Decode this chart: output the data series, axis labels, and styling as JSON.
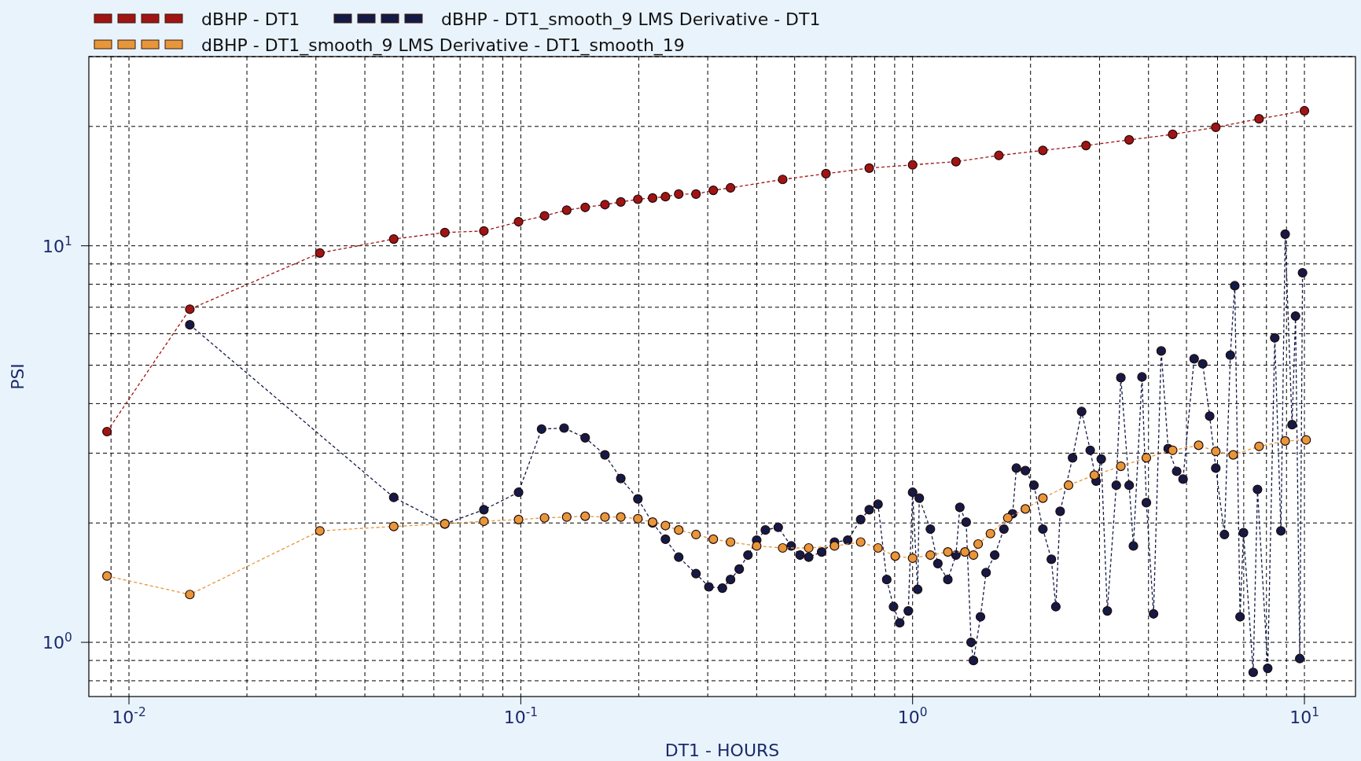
{
  "chart_data": {
    "type": "line",
    "xlabel": "DT1 - HOURS",
    "ylabel": "PSI",
    "log": "xy",
    "grid": true,
    "legend": "top",
    "marker": "circle",
    "line_style": "dashed",
    "xlim": [
      0.0079,
      13.5
    ],
    "ylim": [
      0.73,
      30
    ],
    "xticks": [
      {
        "value": 0.009,
        "label": null
      },
      {
        "value": 0.01,
        "label": "10$^{-2}$"
      },
      {
        "value": 0.02,
        "label": null
      },
      {
        "value": 0.03,
        "label": null
      },
      {
        "value": 0.04,
        "label": null
      },
      {
        "value": 0.05,
        "label": null
      },
      {
        "value": 0.06,
        "label": null
      },
      {
        "value": 0.07,
        "label": null
      },
      {
        "value": 0.08,
        "label": null
      },
      {
        "value": 0.09,
        "label": null
      },
      {
        "value": 0.1,
        "label": "10$^{-1}$"
      },
      {
        "value": 0.2,
        "label": null
      },
      {
        "value": 0.3,
        "label": null
      },
      {
        "value": 0.4,
        "label": null
      },
      {
        "value": 0.5,
        "label": null
      },
      {
        "value": 0.6,
        "label": null
      },
      {
        "value": 0.7,
        "label": null
      },
      {
        "value": 0.8,
        "label": null
      },
      {
        "value": 0.9,
        "label": null
      },
      {
        "value": 1,
        "label": "10$^{0}$"
      },
      {
        "value": 2,
        "label": null
      },
      {
        "value": 3,
        "label": null
      },
      {
        "value": 4,
        "label": null
      },
      {
        "value": 5,
        "label": null
      },
      {
        "value": 6,
        "label": null
      },
      {
        "value": 7,
        "label": null
      },
      {
        "value": 8,
        "label": null
      },
      {
        "value": 9,
        "label": null
      },
      {
        "value": 10,
        "label": "10$^{1}$"
      }
    ],
    "yticks": [
      {
        "value": 0.8,
        "label": null
      },
      {
        "value": 0.9,
        "label": null
      },
      {
        "value": 1,
        "label": "10$^{0}$"
      },
      {
        "value": 2,
        "label": null
      },
      {
        "value": 3,
        "label": null
      },
      {
        "value": 4,
        "label": null
      },
      {
        "value": 5,
        "label": null
      },
      {
        "value": 6,
        "label": null
      },
      {
        "value": 7,
        "label": null
      },
      {
        "value": 8,
        "label": null
      },
      {
        "value": 9,
        "label": null
      },
      {
        "value": 10,
        "label": "10$^{1}$"
      },
      {
        "value": 20,
        "label": null
      },
      {
        "value": 30,
        "label": null
      }
    ],
    "series": [
      {
        "name": "dBHP - DT1",
        "color": "#a01414",
        "x": [
          0.00879,
          0.0143,
          0.0307,
          0.0474,
          0.064,
          0.0805,
          0.0987,
          0.115,
          0.131,
          0.146,
          0.164,
          0.18,
          0.199,
          0.217,
          0.234,
          0.253,
          0.28,
          0.31,
          0.343,
          0.466,
          0.601,
          0.775,
          1.0,
          1.29,
          1.66,
          2.15,
          2.77,
          3.57,
          4.61,
          5.94,
          7.66,
          10.0
        ],
        "values": [
          3.4,
          6.92,
          9.59,
          10.4,
          10.8,
          10.9,
          11.5,
          11.9,
          12.3,
          12.5,
          12.7,
          12.9,
          13.1,
          13.2,
          13.3,
          13.5,
          13.5,
          13.8,
          14.0,
          14.7,
          15.2,
          15.7,
          16.0,
          16.3,
          16.9,
          17.4,
          17.9,
          18.5,
          19.1,
          19.9,
          20.9,
          21.9
        ]
      },
      {
        "name": "dBHP - DT1_smooth_9 LMS Derivative - DT1",
        "color": "#141a45",
        "x": [
          0.0143,
          0.0474,
          0.064,
          0.0805,
          0.0987,
          0.113,
          0.129,
          0.146,
          0.164,
          0.18,
          0.199,
          0.217,
          0.234,
          0.253,
          0.28,
          0.302,
          0.327,
          0.343,
          0.361,
          0.38,
          0.4,
          0.421,
          0.454,
          0.49,
          0.516,
          0.543,
          0.586,
          0.632,
          0.683,
          0.737,
          0.775,
          0.816,
          0.859,
          0.894,
          0.927,
          0.975,
          1.0,
          1.03,
          1.04,
          1.11,
          1.16,
          1.23,
          1.29,
          1.32,
          1.37,
          1.41,
          1.43,
          1.49,
          1.54,
          1.62,
          1.71,
          1.8,
          1.84,
          1.94,
          2.04,
          2.15,
          2.26,
          2.32,
          2.38,
          2.56,
          2.7,
          2.84,
          2.94,
          3.03,
          3.14,
          3.31,
          3.4,
          3.57,
          3.66,
          3.85,
          3.95,
          4.12,
          4.31,
          4.49,
          4.72,
          4.9,
          5.23,
          5.5,
          5.73,
          5.94,
          6.25,
          6.47,
          6.64,
          6.85,
          6.99,
          7.4,
          7.59,
          8.06,
          8.4,
          8.71,
          8.93,
          9.3,
          9.49,
          9.73,
          9.89
        ],
        "values": [
          6.32,
          2.32,
          1.99,
          2.16,
          2.39,
          3.45,
          3.47,
          3.28,
          2.97,
          2.59,
          2.3,
          2.0,
          1.82,
          1.64,
          1.49,
          1.38,
          1.37,
          1.44,
          1.53,
          1.66,
          1.81,
          1.92,
          1.95,
          1.75,
          1.66,
          1.64,
          1.69,
          1.79,
          1.81,
          2.04,
          2.16,
          2.23,
          1.44,
          1.23,
          1.12,
          1.2,
          2.39,
          1.36,
          2.31,
          1.93,
          1.58,
          1.44,
          1.66,
          2.19,
          2.01,
          1.0,
          0.9,
          1.16,
          1.5,
          1.66,
          1.93,
          2.11,
          2.75,
          2.71,
          2.49,
          1.93,
          1.62,
          1.23,
          2.14,
          2.92,
          3.82,
          3.05,
          2.55,
          2.9,
          1.2,
          2.49,
          4.65,
          2.49,
          1.75,
          4.67,
          2.25,
          1.18,
          5.43,
          3.08,
          2.7,
          2.58,
          5.19,
          5.04,
          3.72,
          2.75,
          1.87,
          5.3,
          7.93,
          1.16,
          1.89,
          0.84,
          2.43,
          0.86,
          5.86,
          1.91,
          10.7,
          3.54,
          6.65,
          0.91,
          8.55
        ]
      },
      {
        "name": "dBHP - DT1_smooth_9 LMS Derivative - DT1_smooth_19",
        "color": "#e8963a",
        "x": [
          0.00879,
          0.0143,
          0.0307,
          0.0474,
          0.064,
          0.0805,
          0.0987,
          0.115,
          0.131,
          0.146,
          0.164,
          0.18,
          0.199,
          0.217,
          0.234,
          0.253,
          0.28,
          0.31,
          0.343,
          0.4,
          0.466,
          0.543,
          0.632,
          0.737,
          0.816,
          0.903,
          1.0,
          1.11,
          1.23,
          1.36,
          1.43,
          1.47,
          1.58,
          1.75,
          1.94,
          2.15,
          2.5,
          2.91,
          3.4,
          3.95,
          4.61,
          5.37,
          5.94,
          6.58,
          7.66,
          8.93,
          10.1
        ],
        "values": [
          1.47,
          1.32,
          1.91,
          1.96,
          1.99,
          2.02,
          2.04,
          2.06,
          2.07,
          2.08,
          2.07,
          2.07,
          2.05,
          2.01,
          1.97,
          1.92,
          1.87,
          1.82,
          1.79,
          1.75,
          1.73,
          1.73,
          1.75,
          1.79,
          1.73,
          1.65,
          1.63,
          1.66,
          1.69,
          1.69,
          1.66,
          1.77,
          1.88,
          2.06,
          2.17,
          2.31,
          2.49,
          2.64,
          2.78,
          2.92,
          3.05,
          3.14,
          3.03,
          2.97,
          3.12,
          3.22,
          3.24
        ]
      }
    ]
  }
}
